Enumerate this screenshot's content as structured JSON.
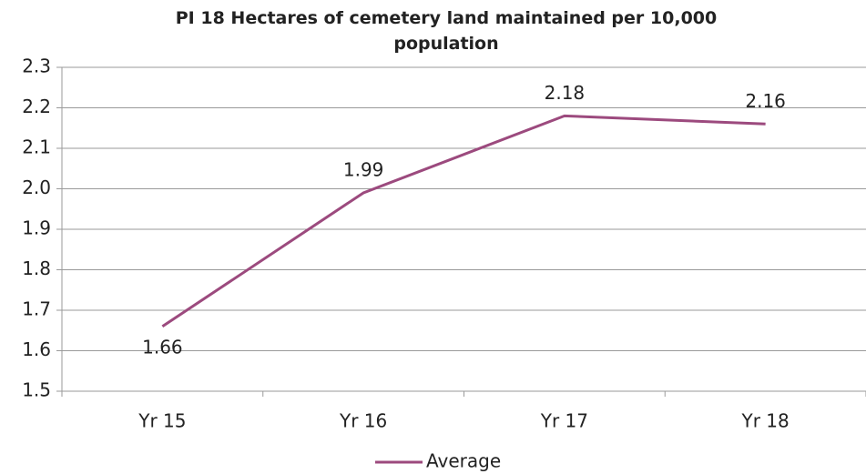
{
  "chart_data": {
    "type": "line",
    "title": "PI 18 Hectares of cemetery land maintained per 10,000 population",
    "categories": [
      "Yr 15",
      "Yr 16",
      "Yr 17",
      "Yr 18"
    ],
    "series": [
      {
        "name": "Average",
        "color": "#9c4a7e",
        "values": [
          1.66,
          1.99,
          2.18,
          2.16
        ]
      }
    ],
    "ylim": [
      1.5,
      2.3
    ],
    "yticks": [
      1.5,
      1.6,
      1.7,
      1.8,
      1.9,
      {
        "value": 2,
        "label": "2.0"
      },
      2.1,
      2.2,
      2.3
    ],
    "grid": true,
    "legend": "bottom"
  }
}
